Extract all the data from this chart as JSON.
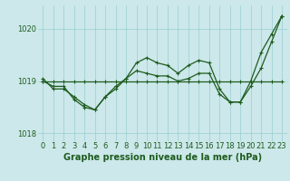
{
  "title": "",
  "xlabel": "Graphe pression niveau de la mer (hPa)",
  "ylabel": "",
  "background_color": "#cce8ea",
  "grid_color": "#99cdd2",
  "line_color": "#1e5c1e",
  "text_color": "#1e5c1e",
  "xlim": [
    -0.5,
    23.5
  ],
  "ylim": [
    1017.85,
    1020.45
  ],
  "yticks": [
    1018,
    1019,
    1020
  ],
  "xticks": [
    0,
    1,
    2,
    3,
    4,
    5,
    6,
    7,
    8,
    9,
    10,
    11,
    12,
    13,
    14,
    15,
    16,
    17,
    18,
    19,
    20,
    21,
    22,
    23
  ],
  "series": [
    {
      "x": [
        0,
        1,
        2,
        3,
        4,
        5,
        6,
        7,
        8,
        9,
        10,
        11,
        12,
        13,
        14,
        15,
        16,
        17,
        18,
        19,
        20,
        21,
        22,
        23
      ],
      "y": [
        1019.0,
        1019.0,
        1019.0,
        1019.0,
        1019.0,
        1019.0,
        1019.0,
        1019.0,
        1019.0,
        1019.0,
        1019.0,
        1019.0,
        1019.0,
        1019.0,
        1019.0,
        1019.0,
        1019.0,
        1019.0,
        1019.0,
        1019.0,
        1019.0,
        1019.0,
        1019.0,
        1019.0
      ]
    },
    {
      "x": [
        0,
        1,
        2,
        3,
        4,
        5,
        6,
        7,
        8,
        9,
        10,
        11,
        12,
        13,
        14,
        15,
        16,
        17,
        18,
        19,
        20,
        21,
        22,
        23
      ],
      "y": [
        1019.0,
        1018.9,
        1018.9,
        1018.65,
        1018.5,
        1018.45,
        1018.7,
        1018.85,
        1019.05,
        1019.35,
        1019.45,
        1019.35,
        1019.3,
        1019.15,
        1019.3,
        1019.4,
        1019.35,
        1018.85,
        1018.6,
        1018.6,
        1018.9,
        1019.25,
        1019.75,
        1020.25
      ]
    },
    {
      "x": [
        0,
        1,
        2,
        3,
        4,
        5,
        6,
        7,
        8,
        9,
        10,
        11,
        12,
        13,
        14,
        15,
        16,
        17,
        18,
        19,
        20,
        21,
        22,
        23
      ],
      "y": [
        1019.05,
        1018.85,
        1018.85,
        1018.7,
        1018.55,
        1018.45,
        1018.7,
        1018.9,
        1019.05,
        1019.2,
        1019.15,
        1019.1,
        1019.1,
        1019.0,
        1019.05,
        1019.15,
        1019.15,
        1018.75,
        1018.6,
        1018.6,
        1019.0,
        1019.55,
        1019.9,
        1020.25
      ]
    }
  ],
  "marker": "+",
  "markersize": 3,
  "linewidth": 0.9,
  "fontsize_xlabel": 7,
  "fontsize_ticks": 6
}
